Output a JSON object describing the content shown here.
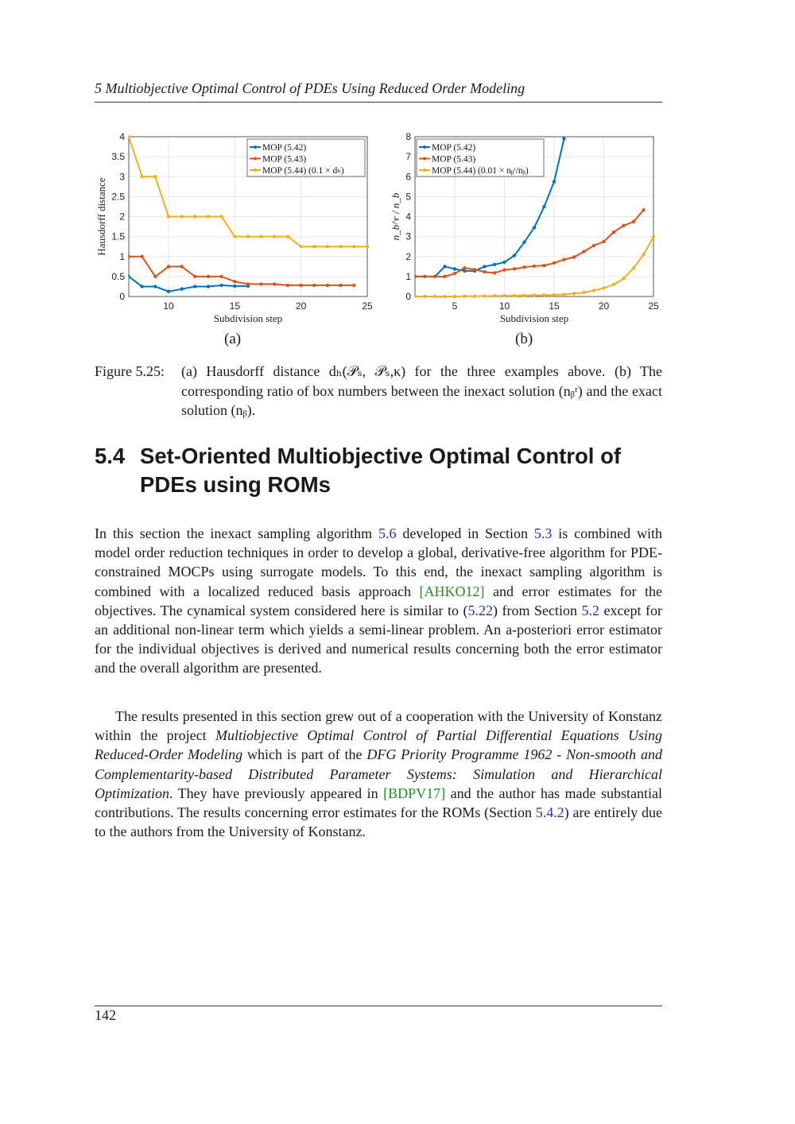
{
  "running_header": "5 Multiobjective Optimal Control of PDEs Using Reduced Order Modeling",
  "subfig_labels": [
    "(a)",
    "(b)"
  ],
  "caption": {
    "label": "Figure 5.25:",
    "text": "(a) Hausdorff distance dₕ(𝒫ₛ, 𝒫ₛ,κ) for the three examples above. (b) The corresponding ratio of box numbers between the inexact solution (nᵦʳ) and the exact solution (nᵦ)."
  },
  "section": {
    "number": "5.4",
    "title": "Set-Oriented Multiobjective Optimal Control of PDEs using ROMs"
  },
  "paragraphs": [
    [
      {
        "t": "In this section the inexact sampling algorithm "
      },
      {
        "t": "5.6",
        "c": "link"
      },
      {
        "t": " developed in Section "
      },
      {
        "t": "5.3",
        "c": "link"
      },
      {
        "t": " is combined with model order reduction techniques in order to develop a global, derivative-free algorithm for PDE-constrained MOCPs using surrogate models. To this end, the inexact sampling algorithm is combined with a localized reduced basis approach "
      },
      {
        "t": "[AHKO12]",
        "c": "cite"
      },
      {
        "t": " and error estimates for the objectives. The cynamical system considered here is similar to ("
      },
      {
        "t": "5.22",
        "c": "link"
      },
      {
        "t": ") from Section "
      },
      {
        "t": "5.2",
        "c": "link"
      },
      {
        "t": " except for an additional non-linear term which yields a semi-linear problem. An a-posteriori error estimator for the individual objectives is derived and numerical results concerning both the error estimator and the overall algorithm are presented."
      }
    ],
    [
      {
        "t": "The results presented in this section grew out of a cooperation with the University of Konstanz within the project "
      },
      {
        "t": "Multiobjective Optimal Control of Partial Differential Equations Using Reduced-Order Modeling",
        "c": "it"
      },
      {
        "t": " which is part of the "
      },
      {
        "t": "DFG Priority Programme 1962 - Non-smooth and Complementarity-based Distributed Parameter Systems: Simulation and Hierarchical Optimization",
        "c": "it"
      },
      {
        "t": ". They have previously appeared in "
      },
      {
        "t": "[BDPV17]",
        "c": "cite"
      },
      {
        "t": " and the author has made substantial contributions. The results concerning error estimates for the ROMs (Section "
      },
      {
        "t": "5.4.2",
        "c": "link"
      },
      {
        "t": ") are entirely due to the authors from the University of Konstanz."
      }
    ]
  ],
  "page_number": "142",
  "colors": {
    "blue": "#0072BD",
    "red": "#D95319",
    "yellow": "#EDB120"
  },
  "chart_data": [
    {
      "type": "line",
      "title": "",
      "xlabel": "Subdivision step",
      "ylabel": "Hausdorff distance",
      "xlim": [
        7,
        25
      ],
      "ylim": [
        0,
        4
      ],
      "xticks": [
        10,
        15,
        20,
        25
      ],
      "yticks": [
        0,
        0.5,
        1,
        1.5,
        2,
        2.5,
        3,
        3.5,
        4
      ],
      "grid": true,
      "legend": "top-right",
      "series": [
        {
          "name": "MOP (5.42)",
          "color": "#0072BD",
          "x": [
            7,
            8,
            9,
            10,
            11,
            12,
            13,
            14,
            15,
            16
          ],
          "y": [
            0.5,
            0.25,
            0.25,
            0.125,
            0.1875,
            0.25,
            0.25,
            0.28,
            0.26,
            0.26
          ]
        },
        {
          "name": "MOP (5.43)",
          "color": "#D95319",
          "x": [
            7,
            8,
            9,
            10,
            11,
            12,
            13,
            14,
            15,
            16,
            17,
            18,
            19,
            20,
            21,
            22,
            23,
            24
          ],
          "y": [
            1,
            1,
            0.5,
            0.75,
            0.75,
            0.5,
            0.5,
            0.5,
            0.375,
            0.31,
            0.31,
            0.31,
            0.28,
            0.28,
            0.28,
            0.28,
            0.28,
            0.28
          ]
        },
        {
          "name": "MOP (5.44) (0.1 × dₕ)",
          "color": "#EDB120",
          "x": [
            7,
            8,
            9,
            10,
            11,
            12,
            13,
            14,
            15,
            16,
            17,
            18,
            19,
            20,
            21,
            22,
            23,
            24,
            25
          ],
          "y": [
            4,
            3,
            3,
            2,
            2,
            2,
            2,
            2,
            1.5,
            1.5,
            1.5,
            1.5,
            1.5,
            1.25,
            1.25,
            1.25,
            1.25,
            1.25,
            1.25
          ]
        }
      ]
    },
    {
      "type": "line",
      "title": "",
      "xlabel": "Subdivision step",
      "ylabel": "n_b^r / n_b",
      "xlim": [
        1,
        25
      ],
      "ylim": [
        0,
        8
      ],
      "xticks": [
        5,
        10,
        15,
        20,
        25
      ],
      "yticks": [
        0,
        1,
        2,
        3,
        4,
        5,
        6,
        7,
        8
      ],
      "grid": true,
      "legend": "top-left",
      "series": [
        {
          "name": "MOP (5.42)",
          "color": "#0072BD",
          "x": [
            1,
            2,
            3,
            4,
            5,
            6,
            7,
            8,
            9,
            10,
            11,
            12,
            13,
            14,
            15,
            16
          ],
          "y": [
            1,
            1,
            1,
            1.5,
            1.38,
            1.28,
            1.28,
            1.5,
            1.6,
            1.72,
            2.05,
            2.72,
            3.45,
            4.5,
            5.75,
            7.9
          ]
        },
        {
          "name": "MOP (5.43)",
          "color": "#D95319",
          "x": [
            1,
            2,
            3,
            4,
            5,
            6,
            7,
            8,
            9,
            10,
            11,
            12,
            13,
            14,
            15,
            16,
            17,
            18,
            19,
            20,
            21,
            22,
            23,
            24
          ],
          "y": [
            1,
            1,
            1,
            1,
            1.15,
            1.43,
            1.35,
            1.23,
            1.18,
            1.33,
            1.38,
            1.47,
            1.52,
            1.55,
            1.68,
            1.85,
            1.97,
            2.25,
            2.55,
            2.75,
            3.22,
            3.55,
            3.75,
            4.33
          ]
        },
        {
          "name": "MOP (5.44) (0.01 × nᵦʳ/nᵦ)",
          "color": "#EDB120",
          "x": [
            1,
            2,
            3,
            4,
            5,
            6,
            7,
            8,
            9,
            10,
            11,
            12,
            13,
            14,
            15,
            16,
            17,
            18,
            19,
            20,
            21,
            22,
            23,
            24,
            25
          ],
          "y": [
            0,
            0,
            0,
            0,
            0,
            0.01,
            0.02,
            0.02,
            0.03,
            0.04,
            0.04,
            0.05,
            0.06,
            0.07,
            0.08,
            0.1,
            0.15,
            0.2,
            0.3,
            0.42,
            0.6,
            0.9,
            1.42,
            2.1,
            2.98
          ]
        }
      ]
    }
  ]
}
